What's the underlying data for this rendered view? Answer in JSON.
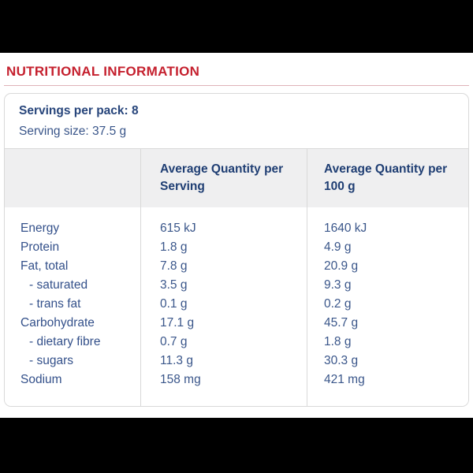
{
  "page": {
    "title": "NUTRITIONAL INFORMATION"
  },
  "panel": {
    "servings_per_pack": "Servings per pack: 8",
    "serving_size": "Serving size: 37.5 g"
  },
  "table": {
    "columns": [
      "",
      "Average Quantity per Serving",
      "Average Quantity per 100 g"
    ],
    "rows": [
      {
        "label": "Energy",
        "per_serving": "615 kJ",
        "per_100g": "1640 kJ",
        "indent": false
      },
      {
        "label": "Protein",
        "per_serving": "1.8 g",
        "per_100g": "4.9 g",
        "indent": false
      },
      {
        "label": "Fat, total",
        "per_serving": "7.8 g",
        "per_100g": "20.9 g",
        "indent": false
      },
      {
        "label": "- saturated",
        "per_serving": "3.5 g",
        "per_100g": "9.3 g",
        "indent": true
      },
      {
        "label": "- trans fat",
        "per_serving": "0.1 g",
        "per_100g": "0.2 g",
        "indent": true
      },
      {
        "label": "Carbohydrate",
        "per_serving": "17.1 g",
        "per_100g": "45.7 g",
        "indent": false
      },
      {
        "label": "- dietary fibre",
        "per_serving": "0.7 g",
        "per_100g": "1.8 g",
        "indent": true
      },
      {
        "label": "- sugars",
        "per_serving": "11.3 g",
        "per_100g": "30.3 g",
        "indent": true
      },
      {
        "label": "Sodium",
        "per_serving": "158 mg",
        "per_100g": "421 mg",
        "indent": false
      }
    ]
  },
  "colors": {
    "title_red": "#c5202e",
    "navy_text": "#33508a",
    "navy_bold": "#1f3e73",
    "header_bg": "#efeff0",
    "border": "#d9d9d9",
    "band": "#000000"
  }
}
